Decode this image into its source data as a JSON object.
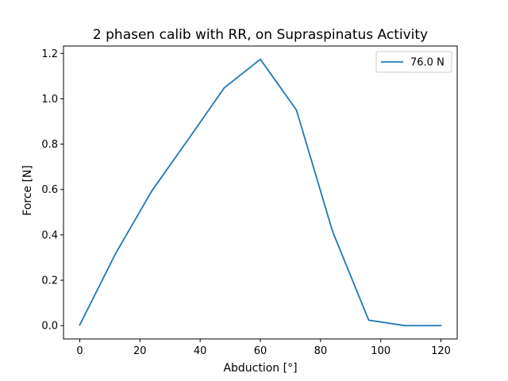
{
  "chart_data": {
    "type": "line",
    "title": "2 phasen calib with RR, on Supraspinatus Activity",
    "xlabel": "Abduction [°]",
    "ylabel": "Force [N]",
    "xlim": [
      -5.4,
      125.4
    ],
    "ylim": [
      -0.0587,
      1.2324
    ],
    "xticks": [
      0,
      20,
      40,
      60,
      80,
      100,
      120
    ],
    "xtick_labels": [
      "0",
      "20",
      "40",
      "60",
      "80",
      "100",
      "120"
    ],
    "yticks": [
      0.0,
      0.2,
      0.4,
      0.6,
      0.8,
      1.0,
      1.2
    ],
    "ytick_labels": [
      "0.0",
      "0.2",
      "0.4",
      "0.6",
      "0.8",
      "1.0",
      "1.2"
    ],
    "grid": false,
    "legend_position": "upper right",
    "series": [
      {
        "name": "76.0 N",
        "color": "#1f77b4",
        "x": [
          0,
          12,
          24,
          36,
          48,
          60,
          72,
          84,
          96,
          108,
          120
        ],
        "y": [
          0.003,
          0.32,
          0.595,
          0.82,
          1.048,
          1.174,
          0.95,
          0.415,
          0.024,
          0.0,
          0.0
        ]
      }
    ]
  }
}
